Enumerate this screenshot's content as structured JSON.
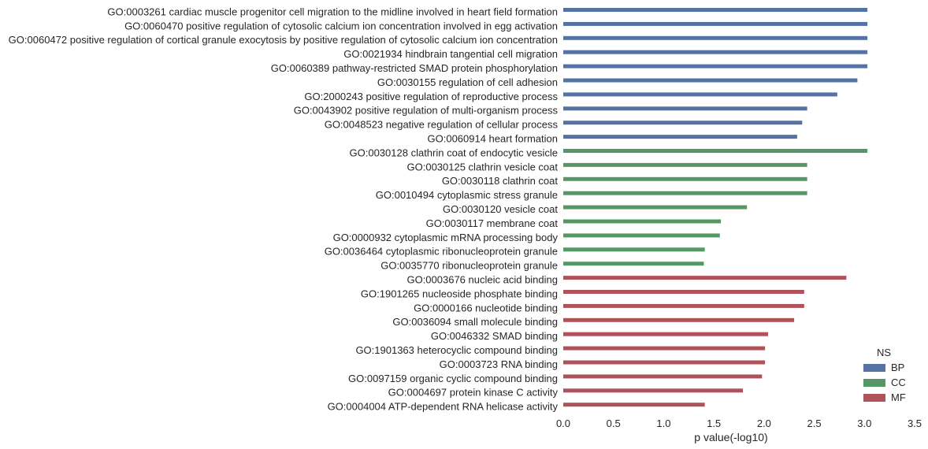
{
  "chart_data": {
    "type": "bar",
    "orientation": "horizontal",
    "title": "",
    "xlabel": "p value(-log10)",
    "ylabel": "",
    "xlim": [
      0,
      3.5
    ],
    "xticks": [
      "0.0",
      "0.5",
      "1.0",
      "1.5",
      "2.0",
      "2.5",
      "3.0",
      "3.5"
    ],
    "grid": false,
    "legend": {
      "title": "NS",
      "placement": "bottom-right",
      "entries": [
        {
          "name": "BP",
          "color": "#5572a4"
        },
        {
          "name": "CC",
          "color": "#559866"
        },
        {
          "name": "MF",
          "color": "#b0525a"
        }
      ]
    },
    "items": [
      {
        "label": "GO:0003261 cardiac muscle progenitor cell migration to the midline involved in heart field formation",
        "ns": "BP",
        "value": 3.03
      },
      {
        "label": "GO:0060470 positive regulation of cytosolic calcium ion concentration involved in egg activation",
        "ns": "BP",
        "value": 3.03
      },
      {
        "label": "GO:0060472 positive regulation of cortical granule exocytosis by positive regulation of cytosolic calcium ion concentration",
        "ns": "BP",
        "value": 3.03
      },
      {
        "label": "GO:0021934 hindbrain tangential cell migration",
        "ns": "BP",
        "value": 3.03
      },
      {
        "label": "GO:0060389 pathway-restricted SMAD protein phosphorylation",
        "ns": "BP",
        "value": 3.03
      },
      {
        "label": "GO:0030155 regulation of cell adhesion",
        "ns": "BP",
        "value": 2.93
      },
      {
        "label": "GO:2000243 positive regulation of reproductive process",
        "ns": "BP",
        "value": 2.73
      },
      {
        "label": "GO:0043902 positive regulation of multi-organism process",
        "ns": "BP",
        "value": 2.43
      },
      {
        "label": "GO:0048523 negative regulation of cellular process",
        "ns": "BP",
        "value": 2.38
      },
      {
        "label": "GO:0060914 heart formation",
        "ns": "BP",
        "value": 2.33
      },
      {
        "label": "GO:0030128 clathrin coat of endocytic vesicle",
        "ns": "CC",
        "value": 3.03
      },
      {
        "label": "GO:0030125 clathrin vesicle coat",
        "ns": "CC",
        "value": 2.43
      },
      {
        "label": "GO:0030118 clathrin coat",
        "ns": "CC",
        "value": 2.43
      },
      {
        "label": "GO:0010494 cytoplasmic stress granule",
        "ns": "CC",
        "value": 2.43
      },
      {
        "label": "GO:0030120 vesicle coat",
        "ns": "CC",
        "value": 1.83
      },
      {
        "label": "GO:0030117 membrane coat",
        "ns": "CC",
        "value": 1.57
      },
      {
        "label": "GO:0000932 cytoplasmic mRNA processing body",
        "ns": "CC",
        "value": 1.56
      },
      {
        "label": "GO:0036464 cytoplasmic ribonucleoprotein granule",
        "ns": "CC",
        "value": 1.41
      },
      {
        "label": "GO:0035770 ribonucleoprotein granule",
        "ns": "CC",
        "value": 1.4
      },
      {
        "label": "GO:0003676 nucleic acid binding",
        "ns": "MF",
        "value": 2.82
      },
      {
        "label": "GO:1901265 nucleoside phosphate binding",
        "ns": "MF",
        "value": 2.4
      },
      {
        "label": "GO:0000166 nucleotide binding",
        "ns": "MF",
        "value": 2.4
      },
      {
        "label": "GO:0036094 small molecule binding",
        "ns": "MF",
        "value": 2.3
      },
      {
        "label": "GO:0046332 SMAD binding",
        "ns": "MF",
        "value": 2.04
      },
      {
        "label": "GO:1901363 heterocyclic compound binding",
        "ns": "MF",
        "value": 2.01
      },
      {
        "label": "GO:0003723 RNA binding",
        "ns": "MF",
        "value": 2.01
      },
      {
        "label": "GO:0097159 organic cyclic compound binding",
        "ns": "MF",
        "value": 1.98
      },
      {
        "label": "GO:0004697 protein kinase C activity",
        "ns": "MF",
        "value": 1.79
      },
      {
        "label": "GO:0004004 ATP-dependent RNA helicase activity",
        "ns": "MF",
        "value": 1.41
      }
    ]
  }
}
